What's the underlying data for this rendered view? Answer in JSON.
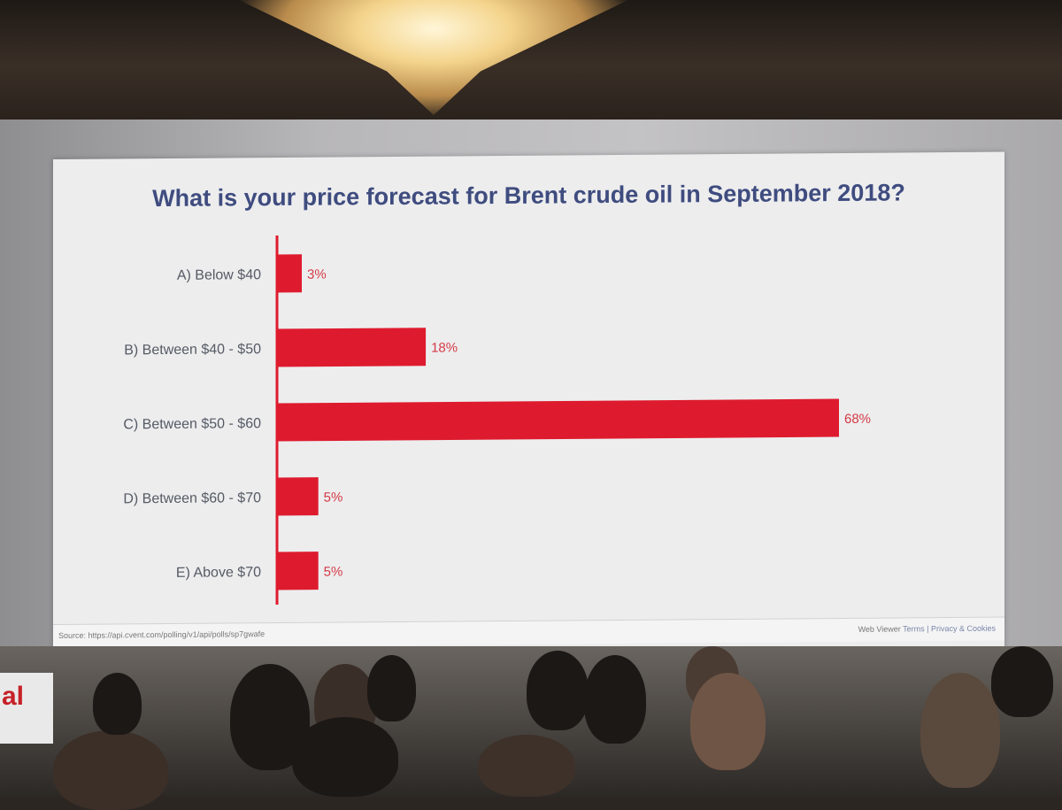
{
  "slide": {
    "title": "What is your price forecast for Brent crude oil in September 2018?",
    "footer_source": "Source: https://api.cvent.com/polling/v1/api/polls/sp7gwafe",
    "footer_viewer": "Web Viewer",
    "footer_terms": "Terms | Privacy & Cookies"
  },
  "room": {
    "banner_text": "al"
  },
  "colors": {
    "bar": "#de1b2e",
    "label": "#555a64",
    "value_label": "#d43a45",
    "title": "#3f4c7f"
  },
  "chart_data": {
    "type": "bar",
    "orientation": "horizontal",
    "categories": [
      "A) Below $40",
      "B) Between $40 - $50",
      "C) Between $50 - $60",
      "D) Between $60 - $70",
      "E) Above $70"
    ],
    "values": [
      3,
      18,
      68,
      5,
      5
    ],
    "value_labels": [
      "3%",
      "18%",
      "68%",
      "5%",
      "5%"
    ],
    "unit": "%",
    "title": "What is your price forecast for Brent crude oil in September 2018?",
    "xlim": [
      0,
      68
    ],
    "grid": false,
    "legend": "none"
  }
}
